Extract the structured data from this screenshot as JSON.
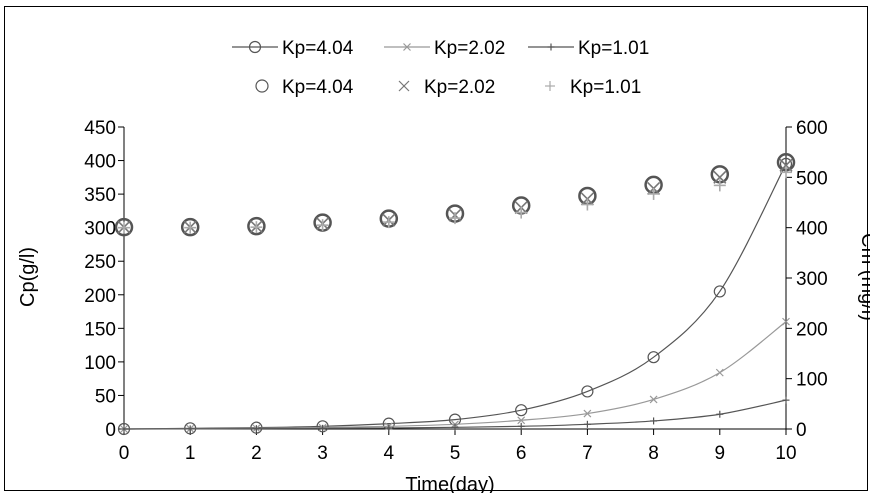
{
  "chart_data": {
    "type": "line",
    "title": "",
    "xlabel": "Time(day)",
    "ylabel": "Cp(g/l)",
    "y2label": "Cm (mg/l)",
    "x": [
      0,
      1,
      2,
      3,
      4,
      5,
      6,
      7,
      8,
      9,
      10
    ],
    "xlim": [
      0,
      10
    ],
    "ylim": [
      0,
      450
    ],
    "y2lim": [
      0,
      600
    ],
    "xticks": [
      "0",
      "1",
      "2",
      "3",
      "4",
      "5",
      "6",
      "7",
      "8",
      "9",
      "10"
    ],
    "yticks": [
      "0",
      "50",
      "100",
      "150",
      "200",
      "250",
      "300",
      "350",
      "400",
      "450"
    ],
    "y2ticks": [
      "0",
      "100",
      "200",
      "300",
      "400",
      "500",
      "600"
    ],
    "grid": false,
    "legend_position": "top-center",
    "series": [
      {
        "name": "Kp=4.04",
        "axis": "left",
        "style": "line",
        "marker": "circle",
        "color": "#555555",
        "values": [
          0,
          1,
          2,
          4,
          8,
          14,
          28,
          56,
          107,
          205,
          395
        ]
      },
      {
        "name": "Kp=2.02",
        "axis": "left",
        "style": "line",
        "marker": "x",
        "color": "#999999",
        "values": [
          0,
          0.5,
          1,
          2,
          4,
          7,
          13,
          23,
          44,
          84,
          160
        ]
      },
      {
        "name": "Kp=1.01",
        "axis": "left",
        "style": "line",
        "marker": "plus",
        "color": "#555555",
        "values": [
          0,
          0.2,
          0.5,
          1,
          1.5,
          2.5,
          4,
          7,
          12,
          22,
          43
        ]
      },
      {
        "name": "Kp=4.04",
        "axis": "right",
        "style": "markers",
        "marker": "circle",
        "color": "#555555",
        "values": [
          401,
          401,
          403,
          410,
          418,
          428,
          444,
          463,
          485,
          506,
          530
        ]
      },
      {
        "name": "Kp=2.02",
        "axis": "right",
        "style": "markers",
        "marker": "x",
        "color": "#777777",
        "values": [
          401,
          401,
          402,
          408,
          415,
          425,
          440,
          457,
          478,
          500,
          524
        ]
      },
      {
        "name": "Kp=1.01",
        "axis": "right",
        "style": "markers",
        "marker": "plus",
        "color": "#aaaaaa",
        "values": [
          400,
          400,
          401,
          405,
          411,
          419,
          430,
          446,
          467,
          484,
          510
        ]
      }
    ]
  }
}
